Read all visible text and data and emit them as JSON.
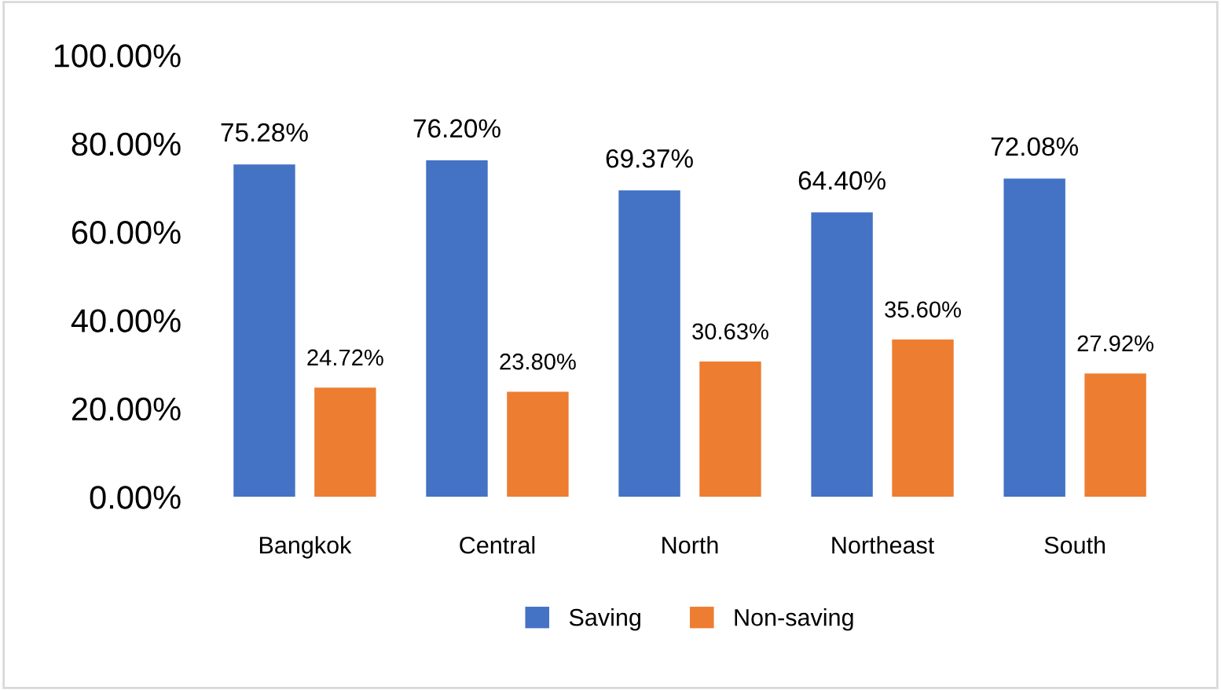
{
  "chart_data": {
    "type": "bar",
    "categories": [
      "Bangkok",
      "Central",
      "North",
      "Northeast",
      "South"
    ],
    "series": [
      {
        "name": "Saving",
        "color": "#4472c4",
        "values": [
          75.28,
          76.2,
          69.37,
          64.4,
          72.08
        ],
        "value_labels": [
          "75.28%",
          "76.20%",
          "69.37%",
          "64.40%",
          "72.08%"
        ]
      },
      {
        "name": "Non-saving",
        "color": "#ed7d31",
        "values": [
          24.72,
          23.8,
          30.63,
          35.6,
          27.92
        ],
        "value_labels": [
          "24.72%",
          "23.80%",
          "30.63%",
          "35.60%",
          "27.92%"
        ]
      }
    ],
    "ylim": [
      0,
      100
    ],
    "yticks": [
      {
        "value": 0,
        "label": "0.00%"
      },
      {
        "value": 20,
        "label": "20.00%"
      },
      {
        "value": 40,
        "label": "40.00%"
      },
      {
        "value": 60,
        "label": "60.00%"
      },
      {
        "value": 80,
        "label": "80.00%"
      },
      {
        "value": 100,
        "label": "100.00%"
      }
    ],
    "grid": false,
    "legend": "bottom"
  }
}
